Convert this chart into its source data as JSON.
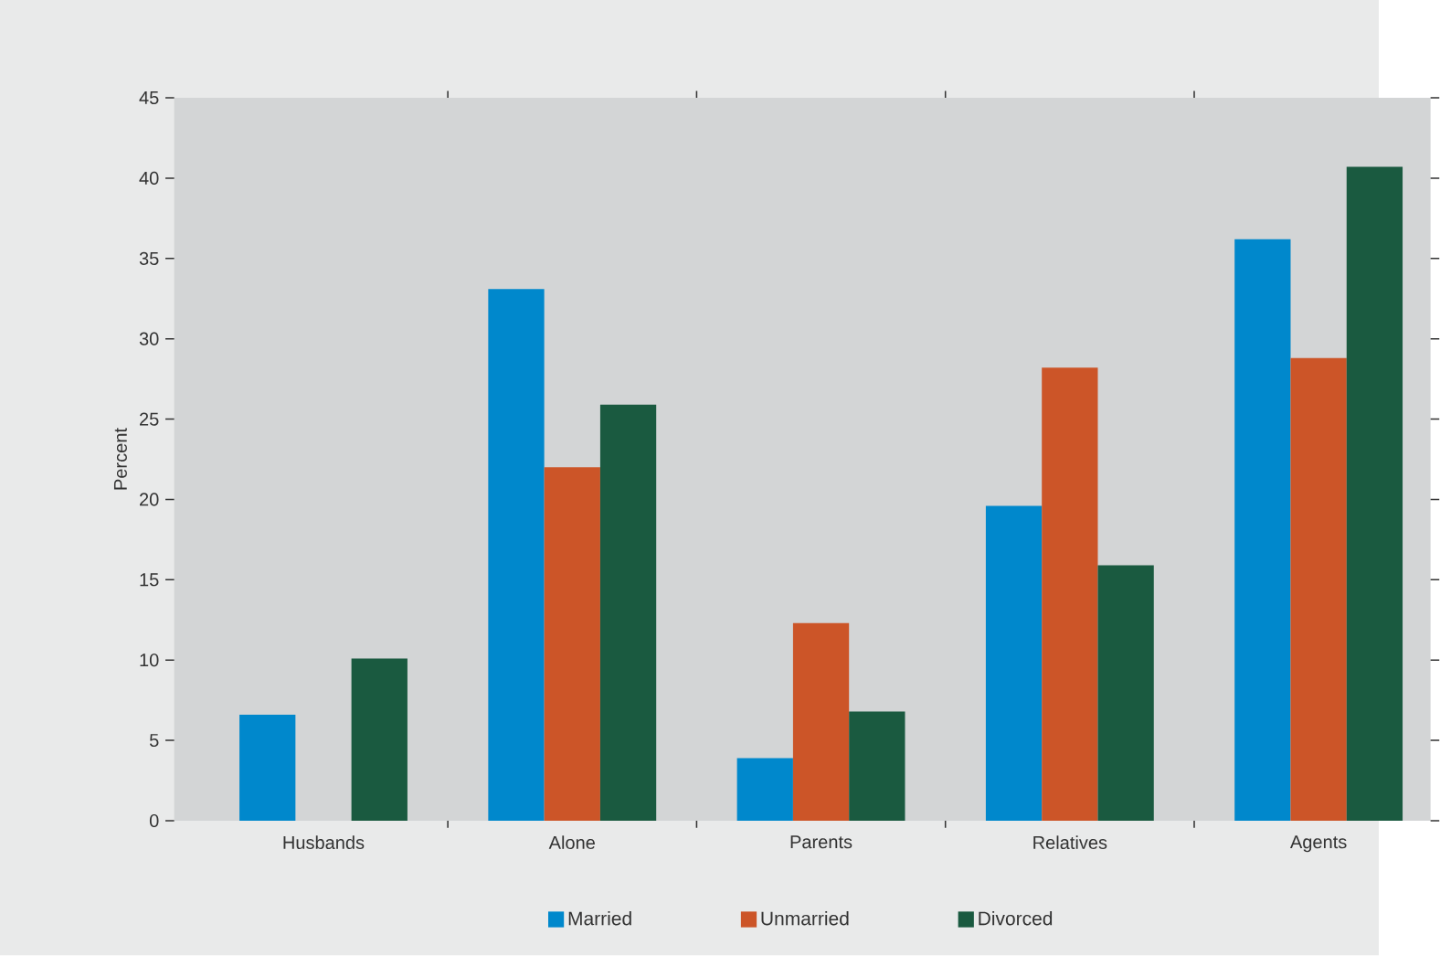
{
  "chart_data": {
    "type": "bar",
    "ylabel": "Percent",
    "categories": [
      "Husbands",
      "Alone",
      "Parents",
      "Relatives",
      "Agents"
    ],
    "series": [
      {
        "name": "Married",
        "color": "#0088cc",
        "values": [
          6.6,
          33.1,
          3.9,
          19.6,
          36.2
        ]
      },
      {
        "name": "Unmarried",
        "color": "#cc5528",
        "values": [
          null,
          22.0,
          12.3,
          28.2,
          28.8
        ]
      },
      {
        "name": "Divorced",
        "color": "#1a5a40",
        "values": [
          10.1,
          25.9,
          6.8,
          15.9,
          40.7
        ]
      }
    ],
    "ylim": [
      0,
      45
    ],
    "yticks": [
      0,
      5,
      10,
      15,
      20,
      25,
      30,
      35,
      40,
      45
    ],
    "legend": "bottom"
  }
}
